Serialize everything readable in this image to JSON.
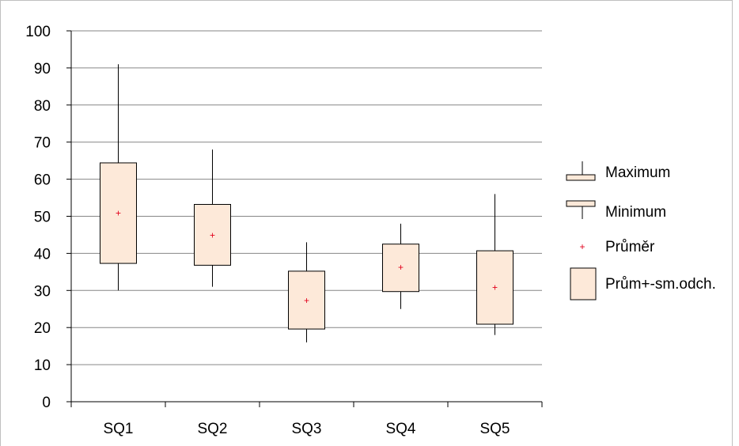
{
  "chart_data": {
    "type": "box",
    "categories": [
      "SQ1",
      "SQ2",
      "SQ3",
      "SQ4",
      "SQ5"
    ],
    "y_ticks": [
      "0",
      "10",
      "20",
      "30",
      "40",
      "50",
      "60",
      "70",
      "80",
      "90",
      "100"
    ],
    "ylim": [
      0,
      100
    ],
    "grid": true,
    "legend_position": "right",
    "series": {
      "max": [
        91,
        68,
        43,
        48,
        56
      ],
      "min": [
        30,
        31,
        16,
        25,
        18
      ],
      "mean": [
        50.8,
        44.9,
        27.3,
        36.2,
        30.8
      ],
      "box_upper": [
        64.4,
        53.2,
        35.2,
        42.5,
        40.7
      ],
      "box_lower": [
        37.3,
        36.8,
        19.6,
        29.7,
        20.9
      ]
    },
    "legend": {
      "max": "Maximum",
      "min": "Minimum",
      "mean": "Průměr",
      "box": "Prům+-sm.odch."
    },
    "colors": {
      "box_fill": "#FDE9D9",
      "mean_marker": "#E3001B",
      "grid": "#868686",
      "line": "#000000"
    }
  }
}
